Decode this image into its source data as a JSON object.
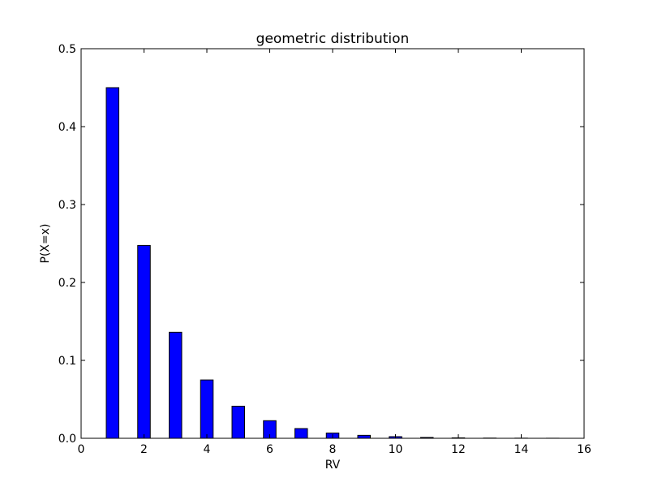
{
  "chart_data": {
    "type": "bar",
    "title": "geometric distribution",
    "xlabel": "RV",
    "ylabel": "P(X=x)",
    "x": [
      1,
      2,
      3,
      4,
      5,
      6,
      7,
      8,
      9,
      10,
      11,
      12,
      13,
      14,
      15
    ],
    "values": [
      0.45,
      0.2475,
      0.1361,
      0.0749,
      0.0412,
      0.0226,
      0.0125,
      0.0068,
      0.0038,
      0.0021,
      0.0011,
      0.0006,
      0.0003,
      0.0002,
      0.0001
    ],
    "xlim": [
      0,
      16
    ],
    "ylim": [
      0,
      0.5
    ],
    "xticks": [
      "0",
      "2",
      "4",
      "6",
      "8",
      "10",
      "12",
      "14",
      "16"
    ],
    "yticks": [
      "0.0",
      "0.1",
      "0.2",
      "0.3",
      "0.4",
      "0.5"
    ],
    "bar_color": "#0000ff",
    "edge_color": "#000000",
    "grid": false
  }
}
